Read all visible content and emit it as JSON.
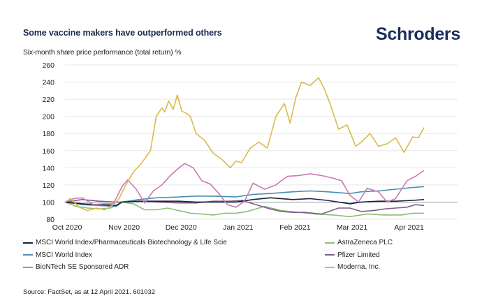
{
  "header": {
    "title": "Some vaccine makers have outperformed others",
    "brand": "Schroders"
  },
  "source": "Source: FactSet, as at 12 April 2021. 601032",
  "chart_data": {
    "type": "line",
    "title": "Some vaccine makers have outperformed others",
    "subtitle": "Six-month share price performance (total return) %",
    "xlabel": "",
    "ylabel": "Six-month share price performance (total return) %",
    "ylim": [
      80,
      260
    ],
    "yticks": [
      80,
      100,
      120,
      140,
      160,
      180,
      200,
      220,
      240,
      260
    ],
    "grid": true,
    "baseline": 100,
    "xlim": [
      0,
      6.3
    ],
    "xticks": [
      {
        "pos": 0,
        "label": "Oct 2020"
      },
      {
        "pos": 1,
        "label": "Nov 2020"
      },
      {
        "pos": 2,
        "label": "Dec 2020"
      },
      {
        "pos": 3,
        "label": "Jan 2021"
      },
      {
        "pos": 4,
        "label": "Feb 2021"
      },
      {
        "pos": 5,
        "label": "Mar 2021"
      },
      {
        "pos": 6,
        "label": "Apr 2021"
      }
    ],
    "x_unit": "months since 1 Oct 2020",
    "legend_position": "bottom",
    "series": [
      {
        "name": "MSCI World Index/Pharmaceuticals Biotechnology & Life Scie",
        "color": "#1b2340",
        "x": [
          0,
          0.3,
          0.6,
          0.9,
          1.0,
          1.3,
          1.6,
          2.0,
          2.3,
          2.6,
          3.0,
          3.3,
          3.6,
          4.0,
          4.3,
          4.6,
          5.0,
          5.2,
          5.5,
          5.8,
          6.1,
          6.3
        ],
        "y": [
          100,
          98,
          97,
          96,
          100,
          101,
          101,
          101,
          100,
          100,
          100,
          103,
          105,
          103,
          104,
          102,
          98,
          100,
          101,
          101,
          102,
          103
        ]
      },
      {
        "name": "MSCI World Index",
        "color": "#4a8db5",
        "x": [
          0,
          0.3,
          0.6,
          0.9,
          1.0,
          1.3,
          1.6,
          2.0,
          2.3,
          2.6,
          3.0,
          3.3,
          3.6,
          4.0,
          4.3,
          4.6,
          5.0,
          5.2,
          5.5,
          5.8,
          6.1,
          6.3
        ],
        "y": [
          100,
          97,
          96,
          95,
          100,
          103,
          105,
          106,
          107,
          107,
          106,
          109,
          110,
          112,
          113,
          112,
          110,
          112,
          113,
          115,
          117,
          118
        ]
      },
      {
        "name": "BioNTech SE Sponsored ADR",
        "color": "#c77bb3",
        "x": [
          0,
          0.15,
          0.3,
          0.5,
          0.7,
          0.85,
          1.0,
          1.1,
          1.25,
          1.4,
          1.55,
          1.7,
          1.85,
          2.0,
          2.1,
          2.25,
          2.4,
          2.55,
          2.7,
          2.85,
          3.0,
          3.15,
          3.3,
          3.5,
          3.7,
          3.9,
          4.1,
          4.3,
          4.5,
          4.7,
          4.85,
          5.0,
          5.15,
          5.3,
          5.5,
          5.65,
          5.8,
          6.0,
          6.15,
          6.3
        ],
        "y": [
          100,
          104,
          105,
          97,
          98,
          98,
          118,
          126,
          115,
          99,
          113,
          120,
          131,
          140,
          145,
          140,
          125,
          121,
          110,
          97,
          94,
          101,
          122,
          115,
          120,
          130,
          131,
          133,
          131,
          128,
          125,
          108,
          100,
          116,
          112,
          100,
          104,
          125,
          130,
          137
        ]
      },
      {
        "name": "AstraZeneca PLC",
        "color": "#8cbf72",
        "x": [
          0,
          0.2,
          0.4,
          0.6,
          0.8,
          1.0,
          1.2,
          1.4,
          1.6,
          1.8,
          2.0,
          2.2,
          2.4,
          2.6,
          2.8,
          3.0,
          3.2,
          3.5,
          3.8,
          4.1,
          4.4,
          4.7,
          5.0,
          5.3,
          5.6,
          5.9,
          6.1,
          6.3
        ],
        "y": [
          100,
          95,
          93,
          92,
          93,
          100,
          98,
          91,
          91,
          93,
          90,
          87,
          86,
          85,
          87,
          87,
          89,
          95,
          90,
          88,
          86,
          85,
          83,
          86,
          85,
          85,
          87,
          87
        ]
      },
      {
        "name": "Pfizer Limited",
        "color": "#7d5e8a",
        "x": [
          0,
          0.3,
          0.6,
          0.9,
          1.0,
          1.3,
          1.6,
          2.0,
          2.3,
          2.6,
          2.9,
          3.1,
          3.3,
          3.6,
          3.8,
          4.0,
          4.2,
          4.5,
          4.8,
          5.0,
          5.2,
          5.4,
          5.6,
          5.8,
          6.0,
          6.15,
          6.3
        ],
        "y": [
          100,
          103,
          101,
          100,
          100,
          101,
          100,
          99,
          99,
          101,
          101,
          102,
          98,
          92,
          89,
          88,
          88,
          86,
          93,
          93,
          89,
          90,
          92,
          93,
          94,
          97,
          96
        ]
      },
      {
        "name": "Moderna, Inc.",
        "color": "#dcb94a",
        "x": [
          0,
          0.1,
          0.25,
          0.4,
          0.55,
          0.7,
          0.85,
          0.95,
          1.05,
          1.2,
          1.35,
          1.5,
          1.6,
          1.7,
          1.75,
          1.82,
          1.9,
          1.97,
          2.05,
          2.12,
          2.2,
          2.3,
          2.45,
          2.6,
          2.75,
          2.9,
          3.0,
          3.1,
          3.25,
          3.4,
          3.55,
          3.7,
          3.85,
          3.95,
          4.05,
          4.15,
          4.3,
          4.45,
          4.55,
          4.65,
          4.8,
          4.95,
          5.1,
          5.2,
          5.35,
          5.5,
          5.65,
          5.8,
          5.95,
          6.1,
          6.2,
          6.3
        ],
        "y": [
          100,
          104,
          94,
          90,
          93,
          91,
          97,
          104,
          118,
          135,
          146,
          160,
          200,
          210,
          205,
          218,
          208,
          225,
          206,
          204,
          200,
          180,
          172,
          157,
          150,
          140,
          148,
          146,
          163,
          170,
          163,
          200,
          215,
          192,
          222,
          240,
          236,
          245,
          232,
          215,
          185,
          190,
          165,
          170,
          180,
          165,
          168,
          175,
          158,
          176,
          175,
          187
        ]
      }
    ]
  }
}
